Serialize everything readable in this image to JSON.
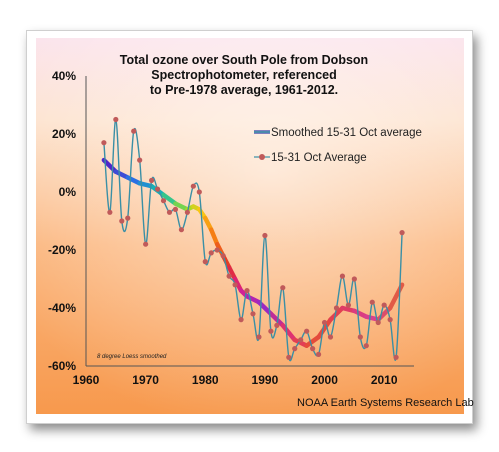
{
  "chart_data": {
    "type": "line",
    "title_lines": [
      "Total ozone over South Pole from Dobson",
      "Spectrophotometer, referenced",
      "to Pre-1978 average, 1961-2012."
    ],
    "xlabel": "",
    "ylabel": "",
    "xlim": [
      1960,
      2015
    ],
    "ylim": [
      -60,
      40
    ],
    "x_ticks": [
      1960,
      1970,
      1980,
      1990,
      2000,
      2010
    ],
    "y_ticks": [
      40,
      20,
      0,
      -20,
      -40,
      -60
    ],
    "y_tick_labels": [
      "40%",
      "20%",
      "0%",
      "-20%",
      "-40%",
      "-60%"
    ],
    "grid": false,
    "legend_position": "top-right",
    "note": "8 degree Loess smoothed",
    "credit": "NOAA Earth Systems Research Lab",
    "series": [
      {
        "name": "Smoothed 15-31 Oct average",
        "style": "thick-rainbow-line",
        "x": [
          1963,
          1965,
          1967,
          1969,
          1971,
          1973,
          1975,
          1977,
          1978,
          1979,
          1980,
          1981,
          1982,
          1983,
          1984,
          1985,
          1986,
          1987,
          1989,
          1991,
          1993,
          1995,
          1997,
          1999,
          2001,
          2003,
          2005,
          2007,
          2009,
          2011,
          2013
        ],
        "values": [
          11,
          7,
          5,
          3,
          2,
          -1,
          -4,
          -6,
          -5,
          -6,
          -9,
          -13,
          -18,
          -22,
          -26,
          -30,
          -34,
          -36,
          -38,
          -42,
          -46,
          -51,
          -53,
          -50,
          -44,
          -40,
          -41,
          -43,
          -44,
          -40,
          -32
        ]
      },
      {
        "name": "15-31 Oct Average",
        "style": "thin-line-with-markers",
        "x": [
          1963,
          1964,
          1965,
          1966,
          1967,
          1968,
          1969,
          1970,
          1971,
          1972,
          1973,
          1974,
          1975,
          1976,
          1977,
          1978,
          1979,
          1980,
          1981,
          1982,
          1983,
          1984,
          1985,
          1986,
          1987,
          1988,
          1989,
          1990,
          1991,
          1992,
          1993,
          1994,
          1995,
          1996,
          1997,
          1998,
          1999,
          2000,
          2001,
          2002,
          2003,
          2004,
          2005,
          2006,
          2007,
          2008,
          2009,
          2010,
          2011,
          2012,
          2013
        ],
        "values": [
          17,
          -7,
          25,
          -10,
          -9,
          21,
          11,
          -18,
          4,
          1,
          -3,
          -7,
          -6,
          -13,
          -7,
          2,
          0,
          -24,
          -21,
          -20,
          -22,
          -29,
          -32,
          -44,
          -34,
          -42,
          -50,
          -15,
          -48,
          -46,
          -33,
          -57,
          -54,
          -51,
          -48,
          -54,
          -56,
          -45,
          -50,
          -40,
          -29,
          -39,
          -30,
          -50,
          -53,
          -38,
          -45,
          -39,
          -44,
          -57,
          -14
        ]
      }
    ]
  }
}
